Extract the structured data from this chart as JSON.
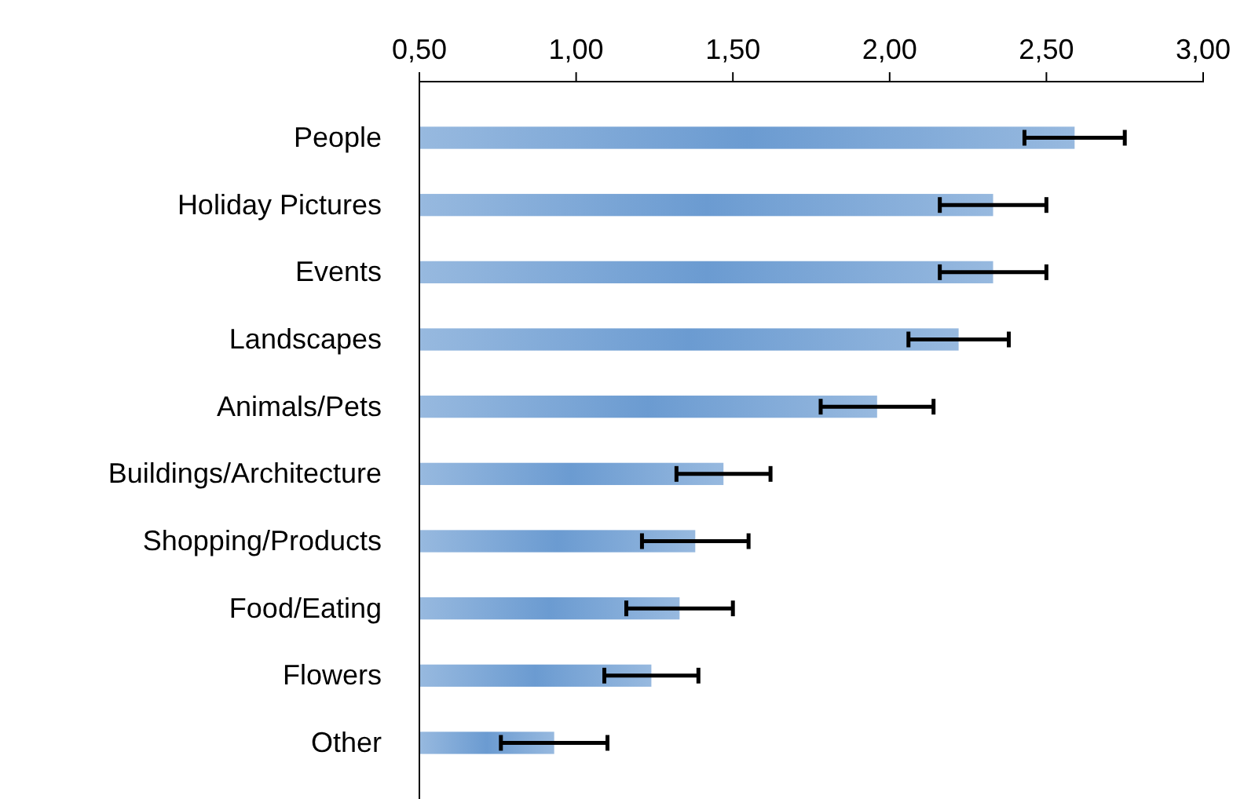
{
  "chart_data": {
    "type": "bar",
    "orientation": "horizontal",
    "categories": [
      "People",
      "Holiday Pictures",
      "Events",
      "Landscapes",
      "Animals/Pets",
      "Buildings/Architecture",
      "Shopping/Products",
      "Food/Eating",
      "Flowers",
      "Other"
    ],
    "values": [
      2.59,
      2.33,
      2.33,
      2.22,
      1.96,
      1.47,
      1.38,
      1.33,
      1.24,
      0.93
    ],
    "errors": [
      0.16,
      0.17,
      0.17,
      0.16,
      0.18,
      0.15,
      0.17,
      0.17,
      0.15,
      0.17
    ],
    "color": "#6b9bd1",
    "xlim": [
      0.5,
      3
    ],
    "xticks": [
      {
        "value": 0.5,
        "label": "0,50"
      },
      {
        "value": 1,
        "label": "1,00"
      },
      {
        "value": 1.5,
        "label": "1,50"
      },
      {
        "value": 2,
        "label": "2,00"
      },
      {
        "value": 2.5,
        "label": "2,50"
      },
      {
        "value": 3,
        "label": "3,00"
      }
    ],
    "grid": false
  }
}
